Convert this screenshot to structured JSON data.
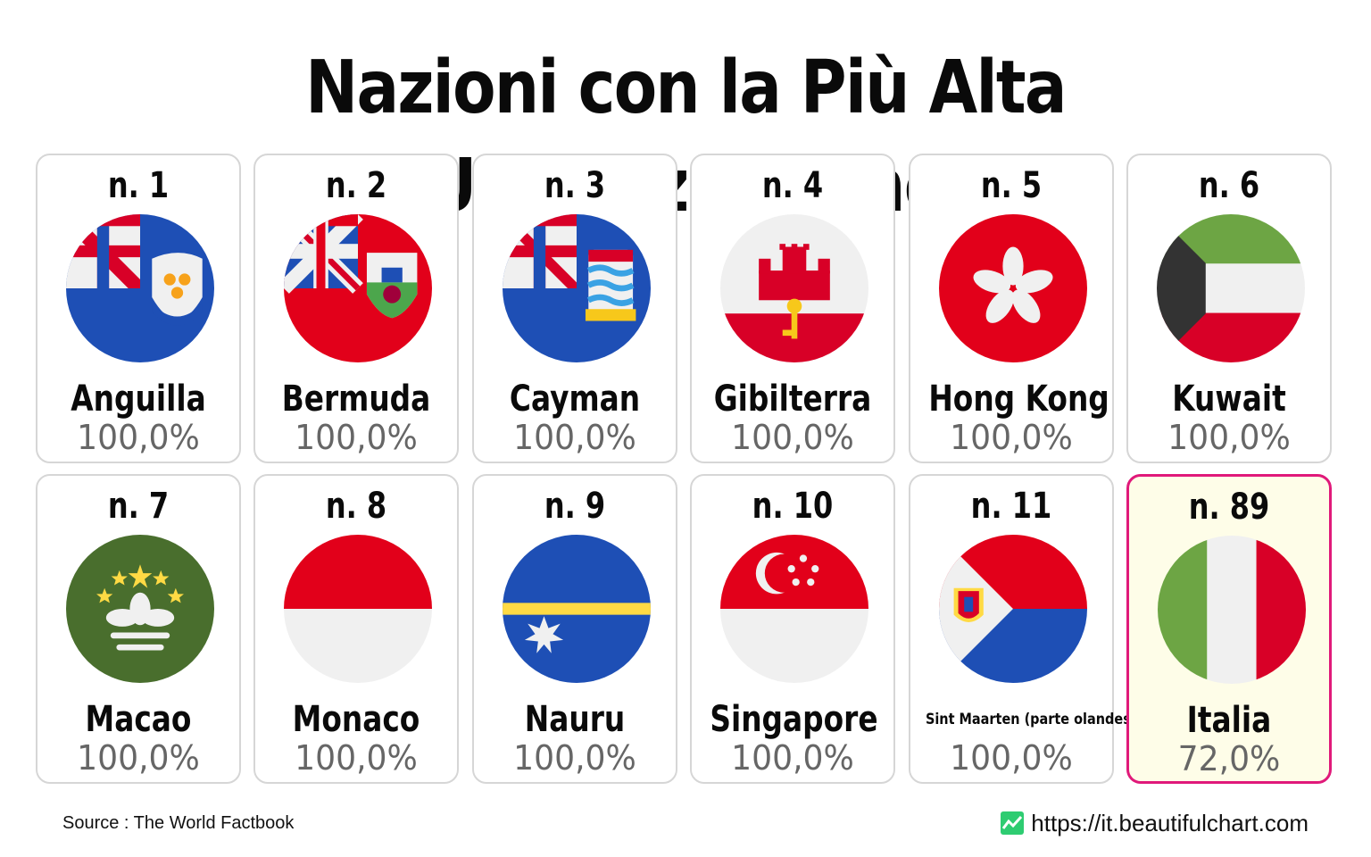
{
  "title": "Nazioni con la Più Alta Urbanizzazione",
  "items": [
    {
      "rank": "n. 1",
      "name": "Anguilla",
      "value": "100,0%",
      "flag": "anguilla-flag-icon"
    },
    {
      "rank": "n. 2",
      "name": "Bermuda",
      "value": "100,0%",
      "flag": "bermuda-flag-icon"
    },
    {
      "rank": "n. 3",
      "name": "Cayman",
      "value": "100,0%",
      "flag": "cayman-flag-icon"
    },
    {
      "rank": "n. 4",
      "name": "Gibilterra",
      "value": "100,0%",
      "flag": "gibraltar-flag-icon"
    },
    {
      "rank": "n. 5",
      "name": "Hong Kong",
      "value": "100,0%",
      "flag": "hong-kong-flag-icon"
    },
    {
      "rank": "n. 6",
      "name": "Kuwait",
      "value": "100,0%",
      "flag": "kuwait-flag-icon"
    },
    {
      "rank": "n. 7",
      "name": "Macao",
      "value": "100,0%",
      "flag": "macao-flag-icon"
    },
    {
      "rank": "n. 8",
      "name": "Monaco",
      "value": "100,0%",
      "flag": "monaco-flag-icon"
    },
    {
      "rank": "n. 9",
      "name": "Nauru",
      "value": "100,0%",
      "flag": "nauru-flag-icon"
    },
    {
      "rank": "n. 10",
      "name": "Singapore",
      "value": "100,0%",
      "flag": "singapore-flag-icon"
    },
    {
      "rank": "n. 11",
      "name": "Sint Maarten (parte olandese)",
      "value": "100,0%",
      "flag": "sint-maarten-flag-icon"
    },
    {
      "rank": "n. 89",
      "name": "Italia",
      "value": "72,0%",
      "flag": "italy-flag-icon"
    }
  ],
  "colors": {
    "highlight_border": "#e0197a",
    "highlight_background": "#fefde8",
    "card_border": "#d6d6d6",
    "value_text": "#666666"
  },
  "footer": {
    "source": "Source : The World Factbook",
    "link": "https://it.beautifulchart.com",
    "link_icon": "chart-logo-icon"
  }
}
